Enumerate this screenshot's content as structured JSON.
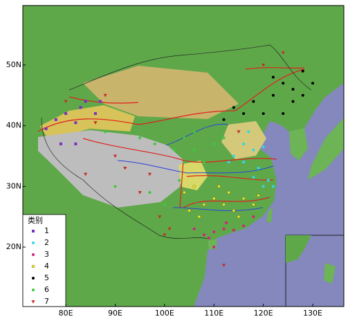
{
  "chart_data": {
    "type": "scatter",
    "xlim": [
      71.3,
      136.3
    ],
    "ylim": [
      10.2,
      59.8
    ],
    "xticks": [
      {
        "value": 80,
        "label": "80E"
      },
      {
        "value": 90,
        "label": "90E"
      },
      {
        "value": 100,
        "label": "100E"
      },
      {
        "value": 110,
        "label": "110E"
      },
      {
        "value": 120,
        "label": "120E"
      },
      {
        "value": 130,
        "label": "130E"
      }
    ],
    "yticks": [
      {
        "value": 20,
        "label": "20N"
      },
      {
        "value": 30,
        "label": "30N"
      },
      {
        "value": 40,
        "label": "40N"
      },
      {
        "value": 50,
        "label": "50N"
      }
    ],
    "legend_title": "类别",
    "legend": "lower left",
    "series": [
      {
        "name": "1",
        "color": "#7a2fc0",
        "marker": "square",
        "x": [
          78,
          80,
          76,
          82,
          84,
          87,
          86,
          79,
          82,
          83
        ],
        "y": [
          41,
          42,
          39.5,
          40.5,
          44,
          44,
          42,
          37,
          37,
          43
        ]
      },
      {
        "name": "2",
        "color": "#2fd8e6",
        "marker": "circle",
        "x": [
          117,
          116,
          118,
          120,
          114,
          119,
          121,
          120,
          118,
          116,
          122,
          113
        ],
        "y": [
          39,
          37,
          36,
          36.5,
          35,
          33,
          31,
          30,
          31.5,
          34,
          30,
          34
        ]
      },
      {
        "name": "3",
        "color": "#d4207e",
        "marker": "circle",
        "x": [
          110,
          112,
          114,
          116,
          108,
          110,
          118,
          106,
          109,
          112.5
        ],
        "y": [
          22.5,
          23,
          22.8,
          23.5,
          22,
          20,
          25,
          23,
          21.5,
          24
        ]
      },
      {
        "name": "4",
        "color": "#f2f200",
        "marker": "circle",
        "x": [
          110,
          112,
          114,
          116,
          118,
          108,
          111,
          106,
          104,
          113,
          119,
          115,
          107,
          105
        ],
        "y": [
          28,
          27,
          26,
          28,
          27,
          27,
          30,
          30,
          29,
          29,
          28.5,
          25,
          25,
          26
        ]
      },
      {
        "name": "5",
        "color": "#000000",
        "marker": "circle",
        "x": [
          118,
          122,
          124,
          126,
          128,
          130,
          126,
          124,
          120,
          112,
          116,
          128,
          122,
          114
        ],
        "y": [
          44,
          45,
          47,
          46,
          45,
          47,
          44,
          42,
          42,
          41,
          42,
          49,
          48,
          43
        ]
      },
      {
        "name": "6",
        "color": "#3cc83c",
        "marker": "circle",
        "x": [
          95,
          98,
          102,
          104,
          106,
          108,
          110,
          112,
          103,
          100,
          97,
          104,
          90,
          88,
          106
        ],
        "y": [
          38,
          37,
          36,
          38,
          36,
          34,
          37,
          38,
          31,
          27,
          29,
          34,
          30,
          39,
          39
        ]
      },
      {
        "name": "7",
        "color": "#c0302a",
        "marker": "triangle-down",
        "x": [
          90,
          92,
          97,
          84,
          86,
          80,
          88,
          99,
          101,
          95,
          124,
          120,
          112,
          115,
          100
        ],
        "y": [
          35,
          33,
          32,
          32,
          40.5,
          44,
          45,
          25,
          23,
          29,
          52,
          50,
          17,
          39,
          22
        ]
      }
    ]
  }
}
